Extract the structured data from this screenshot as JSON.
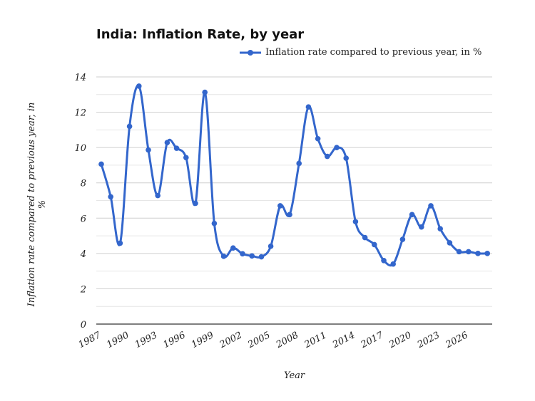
{
  "chart_data": {
    "type": "line",
    "title": "India: Inflation Rate, by year",
    "xlabel": "Year",
    "ylabel": "Inflation rate compared to previous year, in %",
    "ylim": [
      0,
      14
    ],
    "yticks": [
      0,
      2,
      4,
      6,
      8,
      10,
      12,
      14
    ],
    "xticks": [
      "1987",
      "1990",
      "1993",
      "1996",
      "1999",
      "2002",
      "2005",
      "2008",
      "2011",
      "2014",
      "2017",
      "2020",
      "2023",
      "2026"
    ],
    "grid": true,
    "legend_position": "top-right",
    "color": "#3366cc",
    "x": [
      1987,
      1988,
      1989,
      1990,
      1991,
      1992,
      1993,
      1994,
      1995,
      1996,
      1997,
      1998,
      1999,
      2000,
      2001,
      2002,
      2003,
      2004,
      2005,
      2006,
      2007,
      2008,
      2009,
      2010,
      2011,
      2012,
      2013,
      2014,
      2015,
      2016,
      2017,
      2018,
      2019,
      2020,
      2021,
      2022,
      2023,
      2024,
      2025,
      2026,
      2027,
      2028
    ],
    "series": [
      {
        "name": "Inflation rate compared to previous year, in %",
        "values": [
          9.06,
          7.21,
          4.58,
          11.2,
          13.48,
          9.86,
          7.28,
          10.28,
          9.96,
          9.43,
          6.84,
          13.13,
          5.7,
          3.84,
          4.31,
          3.98,
          3.86,
          3.81,
          4.41,
          6.7,
          6.2,
          9.1,
          12.3,
          10.5,
          9.5,
          10.0,
          9.4,
          5.8,
          4.9,
          4.5,
          3.6,
          3.4,
          4.8,
          6.2,
          5.5,
          6.7,
          5.4,
          4.6,
          4.1,
          4.1,
          4.0,
          4.0
        ]
      }
    ]
  }
}
